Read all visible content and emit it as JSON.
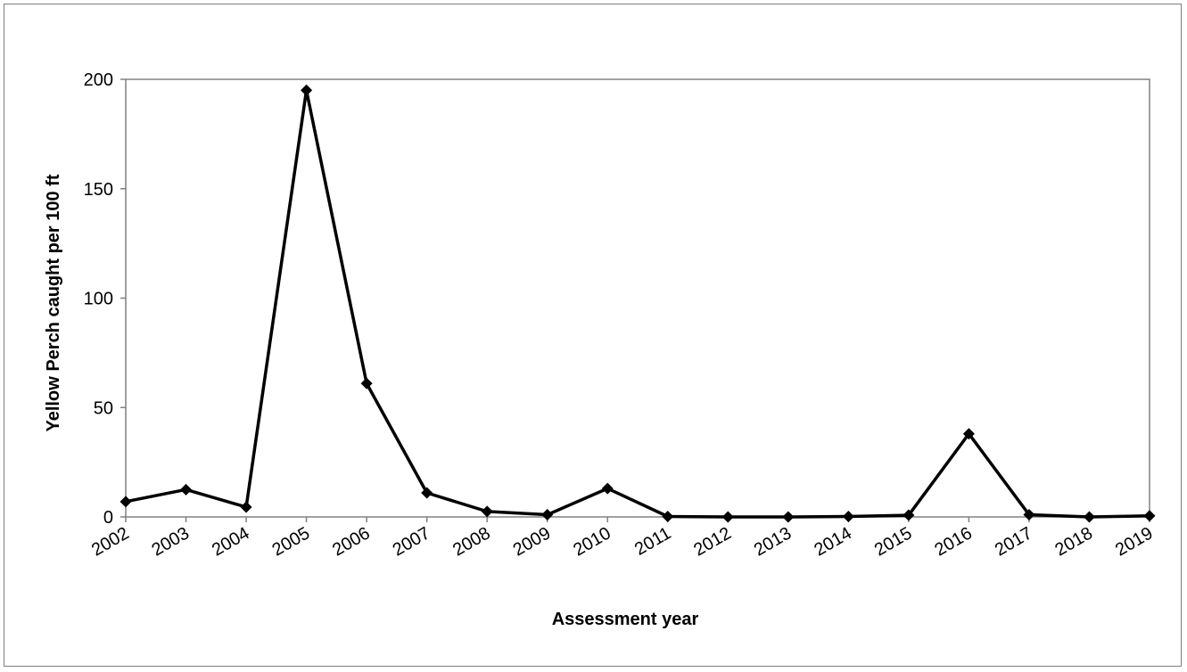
{
  "chart_data": {
    "type": "line",
    "title": "",
    "xlabel": "Assessment year",
    "ylabel": "Yellow Perch caught per 100 ft",
    "categories": [
      "2002",
      "2003",
      "2004",
      "2005",
      "2006",
      "2007",
      "2008",
      "2009",
      "2010",
      "2011",
      "2012",
      "2013",
      "2014",
      "2015",
      "2016",
      "2017",
      "2018",
      "2019"
    ],
    "series": [
      {
        "values": [
          7,
          12.5,
          4.5,
          195,
          61,
          11,
          2.5,
          1,
          13,
          0.2,
          0,
          0,
          0.2,
          0.8,
          38,
          1,
          0,
          0.5
        ],
        "color": "#000000",
        "marker": "diamond"
      }
    ],
    "ylim": [
      0,
      200
    ],
    "yticks": [
      0,
      50,
      100,
      150,
      200
    ],
    "grid": false,
    "legend": "none"
  }
}
